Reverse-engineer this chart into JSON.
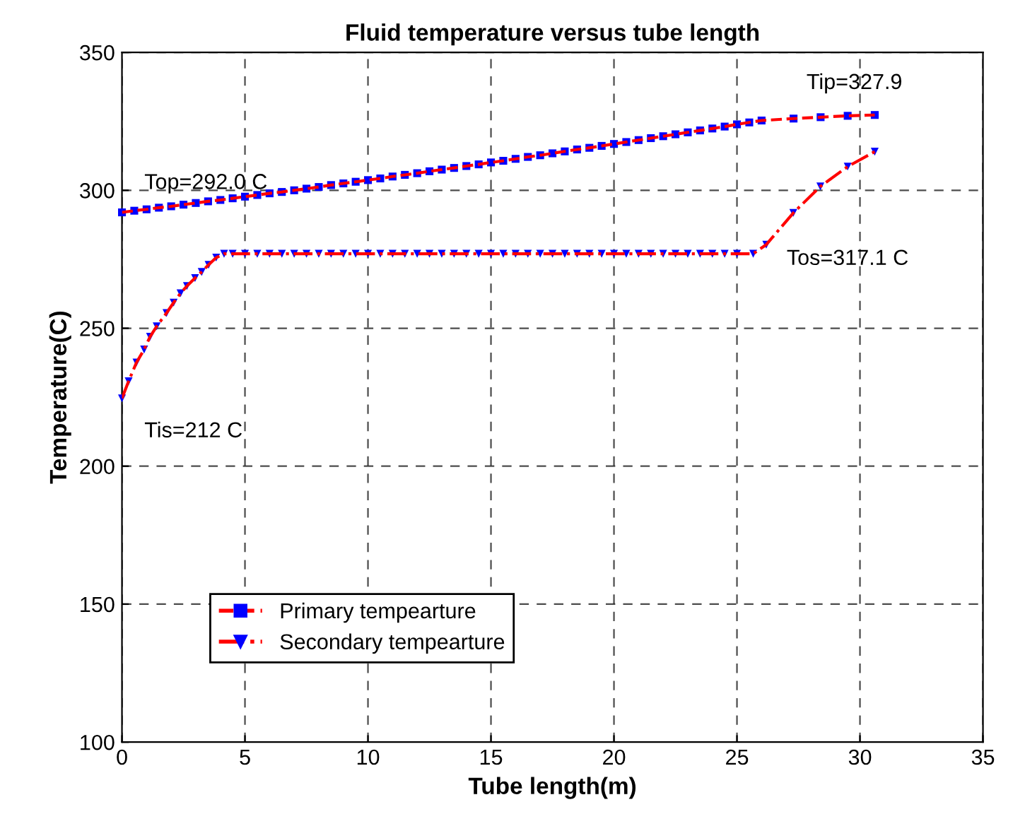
{
  "chart_data": {
    "type": "line",
    "title": "Fluid temperature versus tube length",
    "xlabel": "Tube length(m)",
    "ylabel": "Temperature(C)",
    "xlim": [
      0,
      35
    ],
    "xticks": [
      0,
      5,
      10,
      15,
      20,
      25,
      30,
      35
    ],
    "ylim": [
      100,
      350
    ],
    "yticks": [
      100,
      150,
      200,
      250,
      300,
      350
    ],
    "grid": true,
    "legend": "bottom left",
    "series": [
      {
        "name": "Primary tempearture",
        "color": "#ff0000",
        "colors": [
          "#0000ff",
          "#0000ff",
          "#0000ff",
          "#0000ff",
          "#0000ff",
          "#0000ff",
          "#0000ff",
          "#0000ff",
          "#0000ff",
          "#0000ff",
          "#0000ff",
          "#0000ff",
          "#0000ff",
          "#0000ff",
          "#0000ff",
          "#0000ff",
          "#0000ff",
          "#0000ff",
          "#0000ff",
          "#0000ff",
          "#0000ff",
          "#0000ff",
          "#0000ff",
          "#0000ff",
          "#0000ff",
          "#0000ff",
          "#0000ff",
          "#0000ff",
          "#0000ff",
          "#0000ff",
          "#0000ff",
          "#0000ff",
          "#0000ff",
          "#0000ff",
          "#0000ff",
          "#0000ff",
          "#0000ff",
          "#0000ff",
          "#0000ff",
          "#0000ff",
          "#0000ff",
          "#0000ff",
          "#0000ff",
          "#0000ff",
          "#0000ff",
          "#0000ff",
          "#0000ff",
          "#0000ff",
          "#0000ff",
          "#0000ff",
          "#0000ff",
          "#0000ff",
          "#0000ff",
          "#0000ff",
          "#0000ff",
          "#0000ff",
          "#0000ff"
        ],
        "marker": "square",
        "line_style": "dashed",
        "x": [
          0,
          0.5,
          1,
          1.5,
          2,
          2.5,
          3,
          3.5,
          4,
          4.5,
          5,
          5.5,
          6,
          6.5,
          7,
          7.5,
          8,
          8.5,
          9,
          9.5,
          10,
          10.5,
          11,
          11.5,
          12,
          12.5,
          13,
          13.5,
          14,
          14.5,
          15,
          15.5,
          16,
          16.5,
          17,
          17.5,
          18,
          18.5,
          19,
          19.5,
          20,
          20.5,
          21,
          21.5,
          22,
          22.5,
          23,
          23.5,
          24,
          24.5,
          25,
          25.5,
          26,
          27.3,
          28.4,
          29.5,
          30.6
        ],
        "values": [
          292.0,
          292.6,
          293.1,
          293.7,
          294.2,
          294.8,
          295.4,
          296.0,
          296.5,
          297.1,
          297.7,
          298.3,
          298.9,
          299.4,
          300.0,
          300.6,
          301.2,
          301.9,
          302.5,
          303.1,
          303.7,
          304.3,
          305.0,
          305.6,
          306.2,
          306.9,
          307.5,
          308.1,
          308.8,
          309.4,
          310.1,
          310.7,
          311.4,
          312.1,
          312.7,
          313.4,
          314.1,
          314.8,
          315.4,
          316.1,
          316.8,
          317.5,
          318.2,
          318.9,
          319.6,
          320.3,
          321.0,
          321.7,
          322.4,
          323.1,
          323.9,
          324.6,
          325.3,
          326.0,
          326.5,
          327.0,
          327.3
        ]
      },
      {
        "name": "Secondary tempearture",
        "color": "#ff0000",
        "colors": [
          "#0000ff",
          "#0000ff",
          "#0000ff",
          "#0000ff",
          "#0000ff",
          "#0000ff",
          "#0000ff",
          "#0000ff",
          "#0000ff",
          "#0000ff",
          "#0000ff",
          "#0000ff",
          "#0000ff",
          "#0000ff",
          "#0000ff",
          "#0000ff",
          "#0000ff",
          "#0000ff",
          "#0000ff",
          "#0000ff",
          "#0000ff",
          "#0000ff",
          "#0000ff",
          "#0000ff",
          "#0000ff",
          "#0000ff",
          "#0000ff",
          "#0000ff",
          "#0000ff",
          "#0000ff",
          "#0000ff",
          "#0000ff",
          "#0000ff",
          "#0000ff",
          "#0000ff",
          "#0000ff",
          "#0000ff",
          "#0000ff",
          "#0000ff",
          "#0000ff",
          "#0000ff",
          "#0000ff",
          "#0000ff",
          "#0000ff",
          "#0000ff",
          "#0000ff",
          "#0000ff",
          "#0000ff",
          "#0000ff",
          "#0000ff",
          "#0000ff",
          "#0000ff",
          "#0000ff",
          "#0000ff",
          "#0000ff",
          "#0000ff",
          "#0000ff",
          "#0000ff",
          "#0000ff",
          "#0000ff",
          "#0000ff",
          "#0000ff",
          "#0000ff"
        ],
        "marker": "triangle",
        "line_style": "dashdot",
        "x": [
          0,
          0.27,
          0.59,
          0.9,
          1.14,
          1.41,
          1.81,
          2.1,
          2.38,
          2.64,
          2.97,
          3.24,
          3.52,
          3.83,
          4.15,
          4.5,
          5,
          5.5,
          6,
          6.5,
          7,
          7.5,
          8,
          8.5,
          9,
          9.5,
          10,
          10.5,
          11,
          11.5,
          12,
          12.5,
          13,
          13.5,
          14,
          14.5,
          15,
          15.5,
          16,
          16.5,
          17,
          17.5,
          18,
          18.5,
          19,
          19.5,
          20,
          20.5,
          21,
          21.5,
          22,
          22.5,
          23,
          23.5,
          24,
          24.5,
          25,
          25.66,
          26.19,
          27.29,
          28.39,
          29.5,
          30.6
        ],
        "values": [
          224.6,
          230.8,
          237.6,
          242.3,
          246.9,
          250.7,
          255.5,
          259.3,
          262.7,
          265.3,
          268.2,
          270.4,
          273.0,
          275.6,
          277,
          277,
          277,
          277,
          277,
          277,
          277,
          277,
          277,
          277,
          277,
          277,
          277,
          277,
          277,
          277,
          277,
          277,
          277,
          277,
          277,
          277,
          277,
          277,
          277,
          277,
          277,
          277,
          277,
          277,
          277,
          277,
          277,
          277,
          277,
          277,
          277,
          277,
          277,
          277,
          277,
          277,
          277,
          277,
          280.3,
          291.8,
          301.4,
          308.6,
          314.0
        ]
      }
    ],
    "annotations": [
      "Top=292.0 C",
      "Tip=327.9",
      "Tis=212 C",
      "Tos=317.1 C"
    ]
  }
}
